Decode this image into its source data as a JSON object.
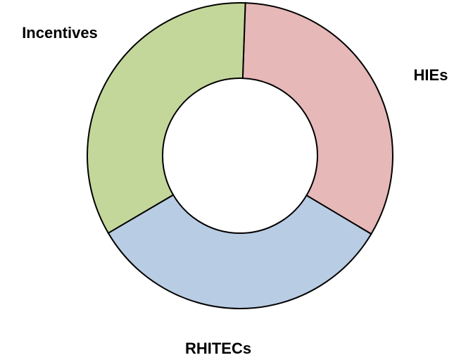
{
  "chart_data": {
    "type": "donut",
    "categories": [
      "HIEs",
      "RHITECs",
      "Incentives"
    ],
    "values": [
      33,
      33,
      34
    ],
    "colors": [
      "#e6b8b7",
      "#b8cce4",
      "#c4d79b"
    ]
  }
}
